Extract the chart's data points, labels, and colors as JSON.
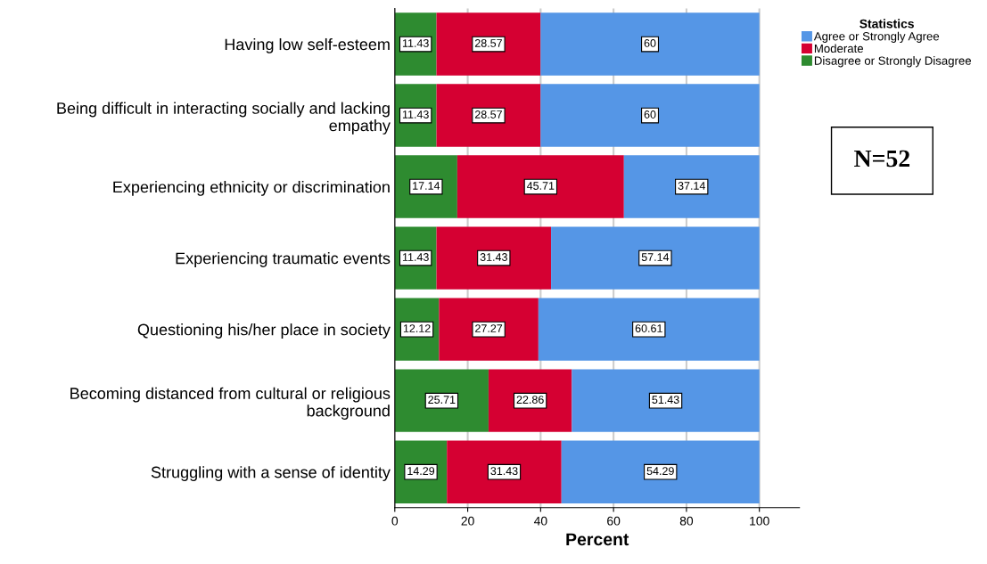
{
  "chart_data": {
    "type": "bar",
    "orientation": "horizontal",
    "stacked": true,
    "xlabel": "Percent",
    "legend_title": "Statistics",
    "legend": "top right",
    "categories": [
      "Having low self-esteem",
      "Being difficult in interacting socially and lacking\nempathy",
      "Experiencing ethnicity or discrimination",
      "Experiencing traumatic events",
      "Questioning his/her place in society",
      "Becoming distanced from cultural or religious\nbackground",
      "Struggling with a sense of identity"
    ],
    "series": [
      {
        "name": "Disagree or Strongly Disagree",
        "color": "#2e8b30",
        "values": [
          11.43,
          11.43,
          17.14,
          11.43,
          12.12,
          25.71,
          14.29
        ]
      },
      {
        "name": "Moderate",
        "color": "#d50032",
        "values": [
          28.57,
          28.57,
          45.71,
          31.43,
          27.27,
          22.86,
          31.43
        ]
      },
      {
        "name": "Agree or Strongly Agree",
        "color": "#5596e6",
        "values": [
          60,
          60,
          37.14,
          57.14,
          60.61,
          51.43,
          54.29
        ]
      }
    ],
    "xlim": [
      0,
      111
    ],
    "xticks": [
      0,
      20,
      40,
      60,
      80,
      100
    ],
    "grid": "x",
    "data_labels": true,
    "annotations": [
      "N=52"
    ]
  }
}
